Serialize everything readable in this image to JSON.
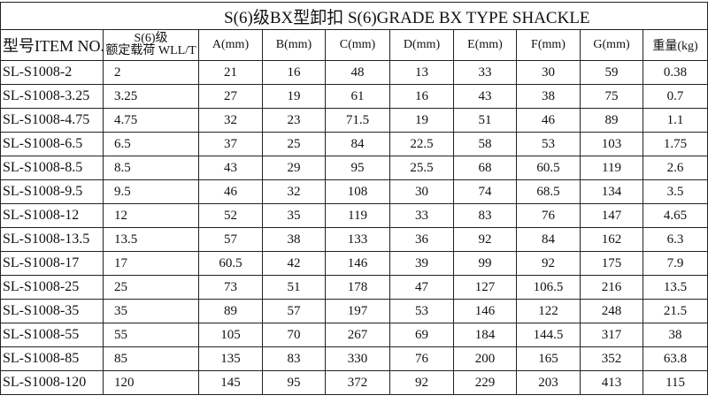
{
  "title": "S(6)级BX型卸扣 S(6)GRADE BX TYPE SHACKLE",
  "headers": {
    "item": "型号ITEM NO.",
    "wll_line1": "S(6)级",
    "wll_line2": "额定载荷 WLL/T",
    "a": "A(mm)",
    "b": "B(mm)",
    "c": "C(mm)",
    "d": "D(mm)",
    "e": "E(mm)",
    "f": "F(mm)",
    "g": "G(mm)",
    "weight": "重量(kg)"
  },
  "rows": [
    [
      "SL-S1008-2",
      "2",
      "21",
      "16",
      "48",
      "13",
      "33",
      "30",
      "59",
      "0.38"
    ],
    [
      "SL-S1008-3.25",
      "3.25",
      "27",
      "19",
      "61",
      "16",
      "43",
      "38",
      "75",
      "0.7"
    ],
    [
      "SL-S1008-4.75",
      "4.75",
      "32",
      "23",
      "71.5",
      "19",
      "51",
      "46",
      "89",
      "1.1"
    ],
    [
      "SL-S1008-6.5",
      "6.5",
      "37",
      "25",
      "84",
      "22.5",
      "58",
      "53",
      "103",
      "1.75"
    ],
    [
      "SL-S1008-8.5",
      "8.5",
      "43",
      "29",
      "95",
      "25.5",
      "68",
      "60.5",
      "119",
      "2.6"
    ],
    [
      "SL-S1008-9.5",
      "9.5",
      "46",
      "32",
      "108",
      "30",
      "74",
      "68.5",
      "134",
      "3.5"
    ],
    [
      "SL-S1008-12",
      "12",
      "52",
      "35",
      "119",
      "33",
      "83",
      "76",
      "147",
      "4.65"
    ],
    [
      "SL-S1008-13.5",
      "13.5",
      "57",
      "38",
      "133",
      "36",
      "92",
      "84",
      "162",
      "6.3"
    ],
    [
      "SL-S1008-17",
      "17",
      "60.5",
      "42",
      "146",
      "39",
      "99",
      "92",
      "175",
      "7.9"
    ],
    [
      "SL-S1008-25",
      "25",
      "73",
      "51",
      "178",
      "47",
      "127",
      "106.5",
      "216",
      "13.5"
    ],
    [
      "SL-S1008-35",
      "35",
      "89",
      "57",
      "197",
      "53",
      "146",
      "122",
      "248",
      "21.5"
    ],
    [
      "SL-S1008-55",
      "55",
      "105",
      "70",
      "267",
      "69",
      "184",
      "144.5",
      "317",
      "38"
    ],
    [
      "SL-S1008-85",
      "85",
      "135",
      "83",
      "330",
      "76",
      "200",
      "165",
      "352",
      "63.8"
    ],
    [
      "SL-S1008-120",
      "120",
      "145",
      "95",
      "372",
      "92",
      "229",
      "203",
      "413",
      "115"
    ]
  ]
}
